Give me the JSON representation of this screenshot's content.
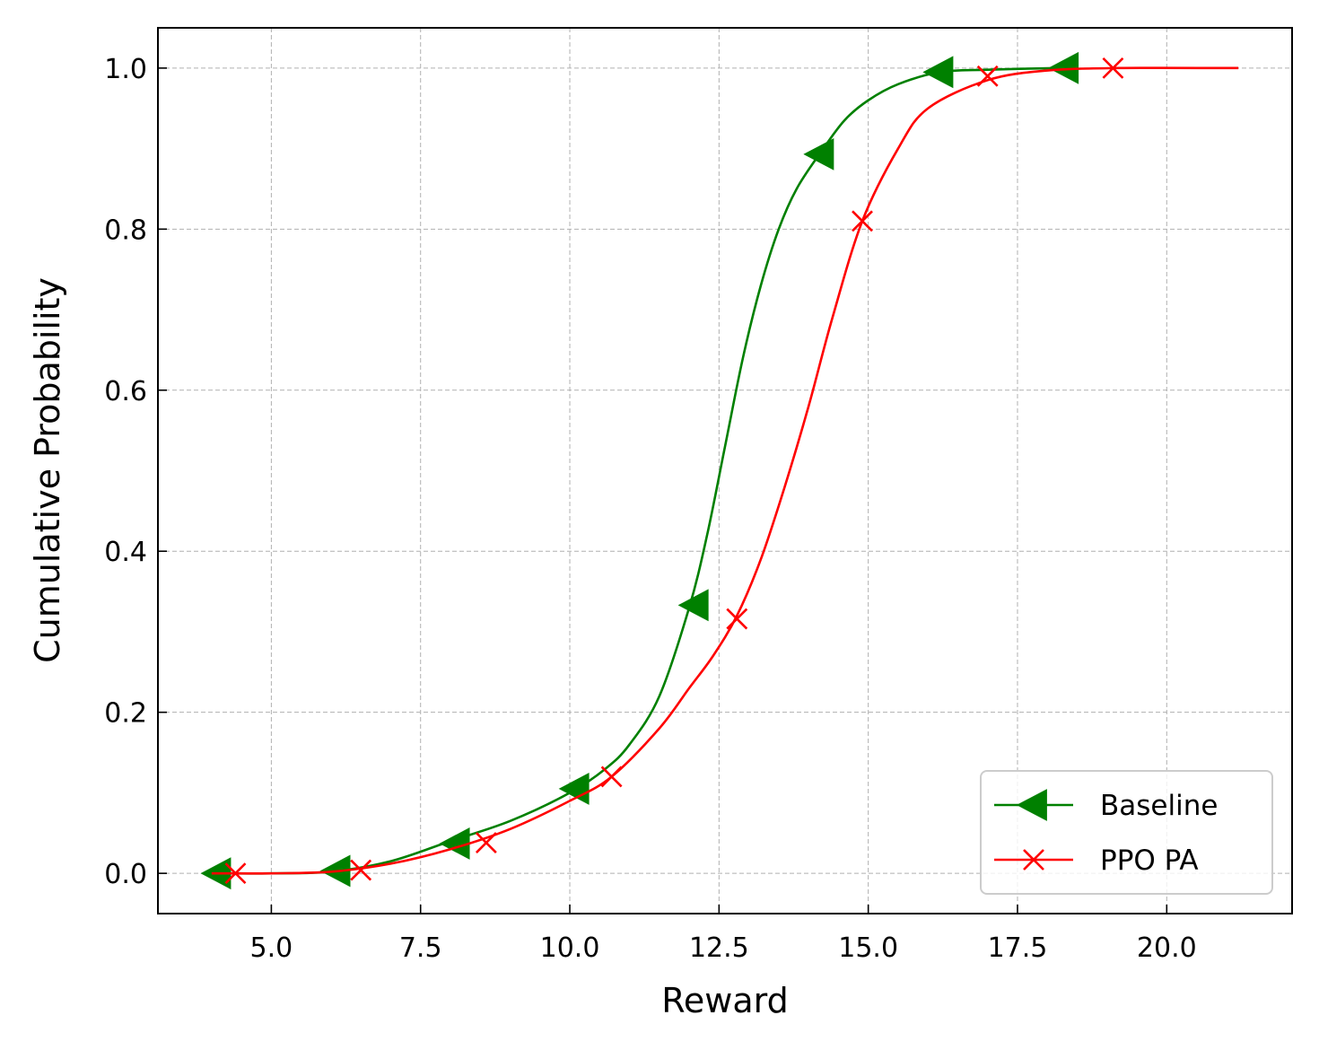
{
  "chart_data": {
    "type": "line",
    "title": "",
    "xlabel": "Reward",
    "ylabel": "Cumulative Probability",
    "xlim": [
      3.1,
      22.1
    ],
    "ylim": [
      -0.05,
      1.05
    ],
    "xticks": [
      5.0,
      7.5,
      10.0,
      12.5,
      15.0,
      17.5,
      20.0
    ],
    "xtick_labels": [
      "5.0",
      "7.5",
      "10.0",
      "12.5",
      "15.0",
      "17.5",
      "20.0"
    ],
    "yticks": [
      0.0,
      0.2,
      0.4,
      0.6,
      0.8,
      1.0
    ],
    "ytick_labels": [
      "0.0",
      "0.2",
      "0.4",
      "0.6",
      "0.8",
      "1.0"
    ],
    "grid": true,
    "legend_position": "lower-right",
    "series": [
      {
        "name": "Baseline",
        "color": "#008000",
        "marker": "triangle-left",
        "x": [
          4.0,
          5.0,
          6.0,
          7.0,
          8.0,
          9.0,
          10.0,
          10.6,
          11.0,
          11.5,
          12.0,
          12.3,
          12.6,
          12.9,
          13.2,
          13.5,
          13.8,
          14.2,
          14.6,
          15.0,
          15.5,
          16.2,
          17.0,
          18.2,
          18.5
        ],
        "y": [
          0.0,
          0.0,
          0.002,
          0.015,
          0.04,
          0.065,
          0.1,
          0.13,
          0.16,
          0.22,
          0.33,
          0.42,
          0.53,
          0.64,
          0.73,
          0.8,
          0.85,
          0.895,
          0.935,
          0.96,
          0.98,
          0.995,
          0.998,
          1.0,
          1.0
        ],
        "marker_x": [
          4.1,
          6.1,
          8.1,
          10.1,
          12.1,
          14.2,
          16.2,
          18.3
        ],
        "marker_y": [
          0.0,
          0.003,
          0.037,
          0.105,
          0.333,
          0.893,
          0.995,
          1.0
        ]
      },
      {
        "name": "PPO PA",
        "color": "#ff0000",
        "marker": "x",
        "x": [
          4.0,
          5.0,
          6.0,
          7.0,
          8.0,
          9.0,
          10.0,
          10.7,
          11.5,
          12.0,
          12.4,
          12.8,
          13.2,
          13.6,
          14.0,
          14.4,
          14.9,
          15.5,
          16.0,
          17.0,
          18.0,
          19.2,
          21.2
        ],
        "y": [
          0.0,
          0.0,
          0.002,
          0.012,
          0.03,
          0.055,
          0.09,
          0.12,
          0.18,
          0.23,
          0.27,
          0.32,
          0.39,
          0.48,
          0.58,
          0.69,
          0.81,
          0.9,
          0.95,
          0.985,
          0.997,
          1.0,
          1.0
        ],
        "marker_x": [
          4.4,
          6.5,
          8.6,
          10.7,
          12.8,
          14.9,
          17.0,
          19.1
        ],
        "marker_y": [
          0.0,
          0.004,
          0.038,
          0.12,
          0.316,
          0.81,
          0.99,
          1.0
        ]
      }
    ]
  }
}
